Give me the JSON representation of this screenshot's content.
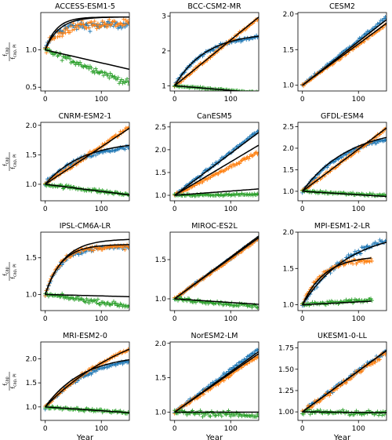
{
  "figure": {
    "x_axis_label": "Year",
    "y_axis_label_numerator": "f",
    "y_axis_label_numerator_sub": "cap",
    "y_axis_label_denominator": "f",
    "y_axis_label_denominator_sub": "cap, PI"
  },
  "colors": {
    "series_blue": "#1f77b4",
    "series_orange": "#ff7f0e",
    "series_green": "#2ca02c",
    "fit_line": "#000000"
  },
  "chart_data": [
    {
      "type": "scatter",
      "title": "ACCESS-ESM1-5",
      "xlim": [
        -8,
        150
      ],
      "ylim": [
        0.45,
        1.5
      ],
      "xticks": [
        0,
        100
      ],
      "yticks": [
        0.5,
        1.0
      ],
      "series": [
        {
          "color": "blue",
          "end": 1.33,
          "shape": "sat",
          "k": 0.06,
          "noise": 0.06,
          "fit": {
            "end": 1.44,
            "shape": "sat",
            "k": 0.05
          }
        },
        {
          "color": "orange",
          "end": 1.35,
          "shape": "sat",
          "k": 0.04,
          "noise": 0.06,
          "fit": {
            "end": 1.44,
            "shape": "sat",
            "k": 0.04
          }
        },
        {
          "color": "green",
          "end": 0.55,
          "shape": "lin",
          "noise": 0.04,
          "fit": {
            "end": 0.74,
            "shape": "lin"
          }
        }
      ]
    },
    {
      "type": "scatter",
      "title": "BCC-CSM2-MR",
      "xlim": [
        -8,
        150
      ],
      "ylim": [
        0.85,
        3.1
      ],
      "xticks": [
        0,
        100
      ],
      "yticks": [
        1,
        2,
        3
      ],
      "series": [
        {
          "color": "blue",
          "end": 2.4,
          "shape": "sat",
          "k": 0.018,
          "noise": 0.05,
          "fit": {
            "end": 2.42,
            "shape": "sat",
            "k": 0.018
          }
        },
        {
          "color": "orange",
          "end": 2.95,
          "shape": "lin",
          "noise": 0.04,
          "fit": {
            "end": 2.97,
            "shape": "lin"
          }
        },
        {
          "color": "green",
          "end": 0.8,
          "shape": "lin",
          "noise": 0.02,
          "fit": {
            "end": 0.8,
            "shape": "lin"
          }
        }
      ]
    },
    {
      "type": "scatter",
      "title": "CESM2",
      "xlim": [
        -8,
        150
      ],
      "ylim": [
        0.92,
        2.02
      ],
      "xticks": [
        0,
        100
      ],
      "yticks": [
        1.0,
        1.5,
        2.0
      ],
      "series": [
        {
          "color": "blue",
          "end": 1.95,
          "shape": "lin",
          "noise": 0.02,
          "fit": {
            "end": 1.92,
            "shape": "lin"
          }
        },
        {
          "color": "orange",
          "end": 1.85,
          "shape": "lin",
          "noise": 0.02,
          "fit": {
            "end": 1.87,
            "shape": "lin"
          }
        }
      ]
    },
    {
      "type": "scatter",
      "title": "CNRM-ESM2-1",
      "xlim": [
        -8,
        150
      ],
      "ylim": [
        0.72,
        2.05
      ],
      "xticks": [
        0,
        100
      ],
      "yticks": [
        1.0,
        1.5,
        2.0
      ],
      "series": [
        {
          "color": "blue",
          "end": 1.62,
          "shape": "sat",
          "k": 0.015,
          "noise": 0.04,
          "fit": {
            "end": 1.66,
            "shape": "sat",
            "k": 0.015
          }
        },
        {
          "color": "orange",
          "end": 1.97,
          "shape": "lin",
          "noise": 0.03,
          "fit": {
            "end": 1.95,
            "shape": "lin"
          }
        },
        {
          "color": "green",
          "end": 0.82,
          "shape": "lin",
          "noise": 0.03,
          "fit": {
            "end": 0.82,
            "shape": "lin"
          }
        }
      ]
    },
    {
      "type": "scatter",
      "title": "CanESM5",
      "xlim": [
        -8,
        150
      ],
      "ylim": [
        0.88,
        2.6
      ],
      "xticks": [
        0,
        100
      ],
      "yticks": [
        1.0,
        1.5,
        2.0,
        2.5
      ],
      "series": [
        {
          "color": "blue",
          "end": 2.42,
          "shape": "lin",
          "noise": 0.03,
          "fit": {
            "end": 2.38,
            "shape": "lin"
          }
        },
        {
          "color": "orange",
          "end": 1.95,
          "shape": "lin",
          "noise": 0.03,
          "fit": {
            "end": 2.1,
            "shape": "lin"
          }
        },
        {
          "color": "green",
          "end": 1.02,
          "shape": "lin",
          "noise": 0.025,
          "fit": {
            "end": 1.14,
            "shape": "lin"
          }
        }
      ]
    },
    {
      "type": "scatter",
      "title": "GFDL-ESM4",
      "xlim": [
        -8,
        150
      ],
      "ylim": [
        0.78,
        2.6
      ],
      "xticks": [
        0,
        100
      ],
      "yticks": [
        1.0,
        1.5,
        2.0,
        2.5
      ],
      "series": [
        {
          "color": "blue",
          "end": 2.2,
          "shape": "sat",
          "k": 0.012,
          "noise": 0.04,
          "fit": {
            "end": 2.25,
            "shape": "sat",
            "k": 0.012
          }
        },
        {
          "color": "orange",
          "end": 2.45,
          "shape": "lin",
          "noise": 0.04,
          "fit": {
            "end": 2.47,
            "shape": "lin"
          }
        },
        {
          "color": "green",
          "end": 0.9,
          "shape": "lin",
          "noise": 0.03,
          "fit": {
            "end": 0.88,
            "shape": "lin"
          }
        }
      ]
    },
    {
      "type": "scatter",
      "title": "IPSL-CM6A-LR",
      "xlim": [
        -8,
        150
      ],
      "ylim": [
        0.78,
        1.85
      ],
      "xticks": [
        0,
        100
      ],
      "yticks": [
        1.0,
        1.5
      ],
      "series": [
        {
          "color": "blue",
          "end": 1.65,
          "shape": "sat",
          "k": 0.035,
          "noise": 0.03,
          "fit": {
            "end": 1.68,
            "shape": "sat",
            "k": 0.035
          }
        },
        {
          "color": "orange",
          "end": 1.65,
          "shape": "sat",
          "k": 0.04,
          "noise": 0.03,
          "fit": {
            "end": 1.75,
            "shape": "sat",
            "k": 0.03
          }
        },
        {
          "color": "green",
          "end": 0.84,
          "shape": "lin",
          "noise": 0.03,
          "fit": {
            "end": 0.97,
            "shape": "lin"
          }
        }
      ]
    },
    {
      "type": "scatter",
      "title": "MIROC-ES2L",
      "xlim": [
        -8,
        150
      ],
      "ylim": [
        0.85,
        1.85
      ],
      "xticks": [
        0,
        100
      ],
      "yticks": [
        1.0,
        1.5
      ],
      "series": [
        {
          "color": "blue",
          "end": 1.78,
          "shape": "lin",
          "noise": 0.015,
          "fit": {
            "end": 1.8,
            "shape": "lin"
          }
        },
        {
          "color": "orange",
          "end": 1.77,
          "shape": "lin",
          "noise": 0.015,
          "fit": {
            "end": 1.78,
            "shape": "lin"
          }
        },
        {
          "color": "green",
          "end": 0.9,
          "shape": "lin",
          "noise": 0.025,
          "fit": {
            "end": 0.93,
            "shape": "lin"
          }
        }
      ]
    },
    {
      "type": "scatter",
      "title": "MPI-ESM1-2-LR",
      "xlim": [
        -8,
        150
      ],
      "ylim": [
        0.92,
        2.0
      ],
      "xticks": [
        0,
        100
      ],
      "yticks": [
        1.0,
        1.5,
        2.0
      ],
      "series": [
        {
          "color": "blue",
          "end": 1.88,
          "shape": "sat",
          "k": 0.012,
          "noise": 0.04,
          "fit": {
            "end": 1.86,
            "shape": "sat",
            "k": 0.012
          }
        },
        {
          "color": "orange",
          "end": 1.62,
          "shape": "sat",
          "k": 0.03,
          "noise": 0.04,
          "xmax": 125,
          "fit": {
            "end": 1.66,
            "shape": "sat",
            "k": 0.025
          }
        },
        {
          "color": "green",
          "end": 1.08,
          "shape": "lin",
          "noise": 0.025,
          "xmax": 125,
          "fit": {
            "end": 1.06,
            "shape": "lin"
          }
        }
      ]
    },
    {
      "type": "scatter",
      "title": "MRI-ESM2-0",
      "xlim": [
        -8,
        150
      ],
      "ylim": [
        0.72,
        2.35
      ],
      "xticks": [
        0,
        100
      ],
      "yticks": [
        1.0,
        1.5,
        2.0
      ],
      "series": [
        {
          "color": "blue",
          "end": 1.95,
          "shape": "sat",
          "k": 0.012,
          "noise": 0.04,
          "fit": {
            "end": 1.98,
            "shape": "sat",
            "k": 0.015
          }
        },
        {
          "color": "orange",
          "end": 2.2,
          "shape": "sat",
          "k": 0.006,
          "noise": 0.03,
          "fit": {
            "end": 2.2,
            "shape": "sat",
            "k": 0.006
          }
        },
        {
          "color": "green",
          "end": 0.88,
          "shape": "lin",
          "noise": 0.03,
          "fit": {
            "end": 0.88,
            "shape": "lin"
          }
        }
      ]
    },
    {
      "type": "scatter",
      "title": "NorESM2-LM",
      "xlim": [
        -8,
        150
      ],
      "ylim": [
        0.88,
        2.02
      ],
      "xticks": [
        0,
        100
      ],
      "yticks": [
        1.0,
        1.5,
        2.0
      ],
      "series": [
        {
          "color": "blue",
          "end": 1.92,
          "shape": "lin",
          "noise": 0.025,
          "fit": {
            "end": 1.88,
            "shape": "lin"
          }
        },
        {
          "color": "orange",
          "end": 1.82,
          "shape": "lin",
          "noise": 0.025,
          "fit": {
            "end": 1.85,
            "shape": "lin"
          }
        },
        {
          "color": "green",
          "end": 0.95,
          "shape": "lin",
          "noise": 0.04,
          "fit": {
            "end": 1.0,
            "shape": "lin"
          }
        }
      ]
    },
    {
      "type": "scatter",
      "title": "UKESM1-0-LL",
      "xlim": [
        -8,
        150
      ],
      "ylim": [
        0.9,
        1.82
      ],
      "xticks": [
        0,
        100
      ],
      "yticks": [
        1.0,
        1.25,
        1.5,
        1.75
      ],
      "series": [
        {
          "color": "blue",
          "end": 1.72,
          "shape": "lin",
          "noise": 0.03,
          "fit": {
            "end": 1.72,
            "shape": "lin"
          }
        },
        {
          "color": "orange",
          "end": 1.7,
          "shape": "lin",
          "noise": 0.03,
          "fit": {
            "end": 1.72,
            "shape": "lin"
          }
        },
        {
          "color": "green",
          "end": 0.98,
          "shape": "lin",
          "noise": 0.03,
          "fit": {
            "end": 0.99,
            "shape": "lin"
          }
        }
      ]
    }
  ]
}
